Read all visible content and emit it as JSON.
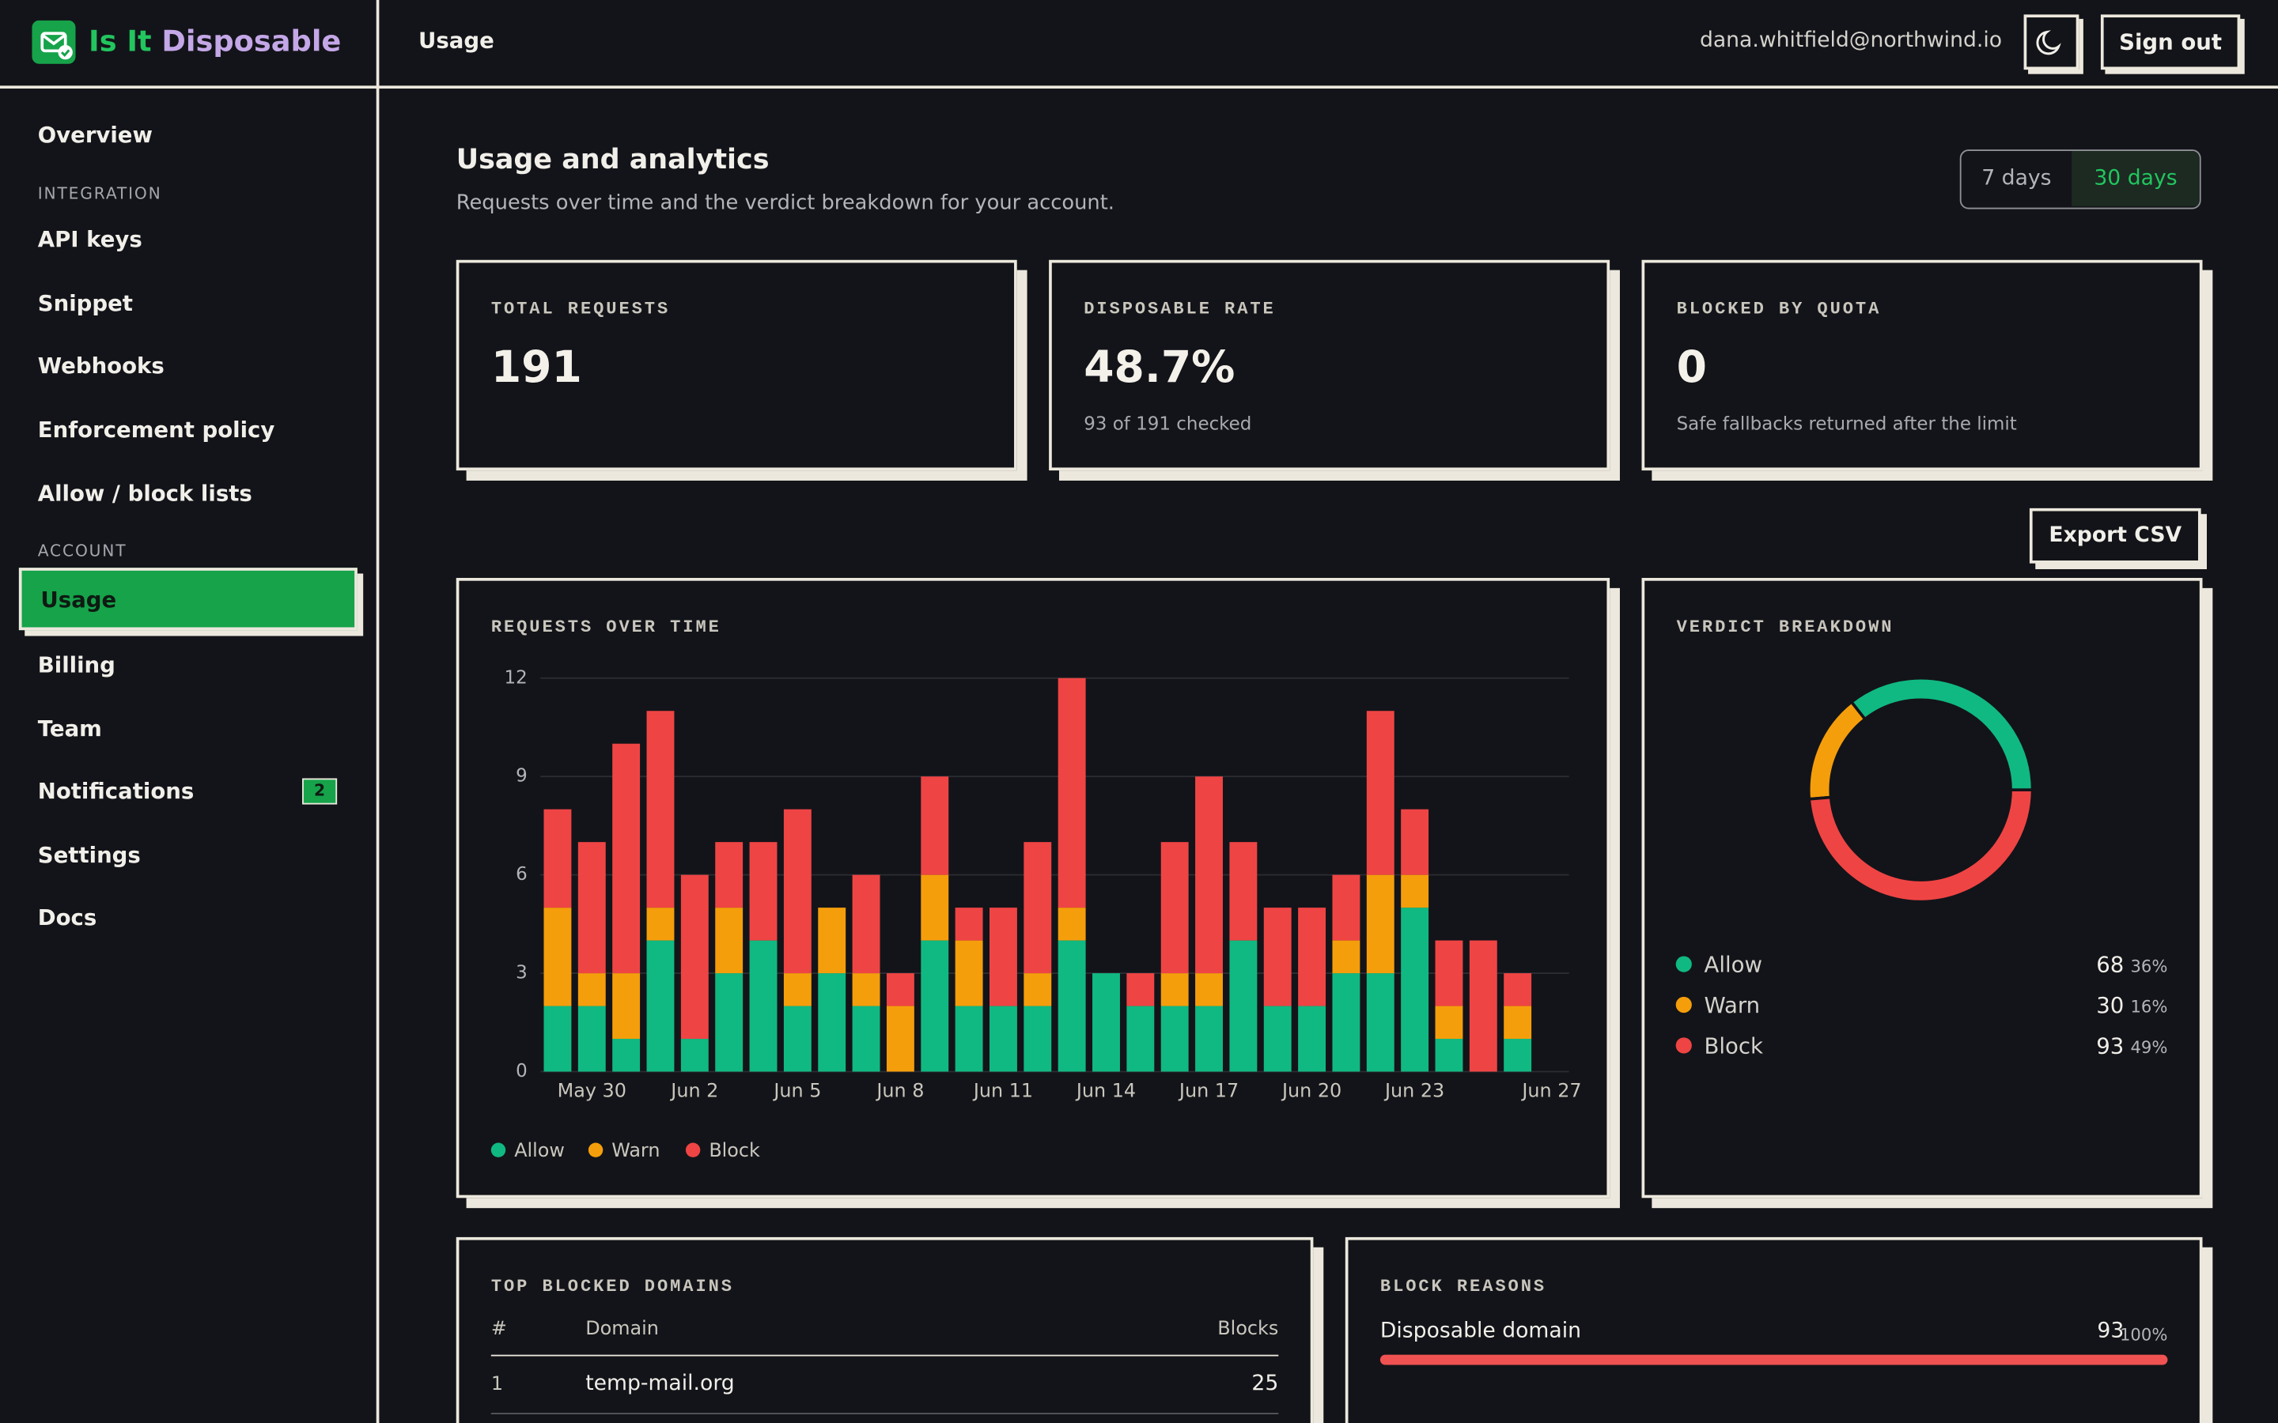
{
  "brand": {
    "first": "Is It",
    "second": "Disposable"
  },
  "topbar": {
    "page": "Usage",
    "email": "dana.whitfield@northwind.io",
    "sign_out": "Sign out"
  },
  "nav": {
    "overview": "Overview",
    "integration": "INTEGRATION",
    "api_keys": "API keys",
    "snippet": "Snippet",
    "webhooks": "Webhooks",
    "enforcement": "Enforcement policy",
    "lists": "Allow / block lists",
    "account": "ACCOUNT",
    "usage": "Usage",
    "billing": "Billing",
    "team": "Team",
    "notifications": "Notifications",
    "notifications_badge": "2",
    "settings": "Settings",
    "docs": "Docs"
  },
  "header": {
    "title": "Usage and analytics",
    "subtitle": "Requests over time and the verdict breakdown for your account.",
    "ranges": [
      "7 days",
      "30 days"
    ]
  },
  "stats": [
    {
      "label": "TOTAL REQUESTS",
      "value": "191"
    },
    {
      "label": "DISPOSABLE RATE",
      "value": "48.7%",
      "note": "93 of 191 checked"
    },
    {
      "label": "BLOCKED BY QUOTA",
      "value": "0",
      "note": "Safe fallbacks returned after the limit"
    }
  ],
  "export": "Export CSV",
  "chart_data": [
    {
      "type": "bar",
      "stacked": true,
      "title": "REQUESTS OVER TIME",
      "categories": [
        null,
        "May 30",
        null,
        null,
        "Jun 2",
        null,
        null,
        "Jun 5",
        null,
        null,
        "Jun 8",
        null,
        null,
        "Jun 11",
        null,
        null,
        "Jun 14",
        null,
        null,
        "Jun 17",
        null,
        null,
        "Jun 20",
        null,
        null,
        "Jun 23",
        null,
        null,
        null,
        "Jun 27"
      ],
      "series": [
        {
          "name": "Allow",
          "color": "#10b981",
          "values": [
            2,
            2,
            1,
            4,
            1,
            3,
            4,
            2,
            3,
            2,
            0,
            4,
            2,
            2,
            2,
            4,
            3,
            2,
            2,
            2,
            4,
            2,
            2,
            3,
            3,
            5,
            1,
            0,
            1,
            0
          ]
        },
        {
          "name": "Warn",
          "color": "#f59e0b",
          "values": [
            3,
            1,
            2,
            1,
            0,
            2,
            0,
            1,
            2,
            1,
            2,
            2,
            2,
            0,
            1,
            1,
            0,
            0,
            1,
            1,
            0,
            0,
            0,
            1,
            3,
            1,
            1,
            0,
            1,
            0
          ]
        },
        {
          "name": "Block",
          "color": "#ef4444",
          "values": [
            3,
            4,
            7,
            6,
            5,
            2,
            3,
            5,
            0,
            3,
            1,
            3,
            1,
            3,
            4,
            7,
            0,
            1,
            4,
            6,
            3,
            3,
            3,
            2,
            5,
            2,
            2,
            4,
            1,
            0
          ]
        }
      ],
      "ylim": [
        0,
        12
      ],
      "yticks": [
        0,
        3,
        6,
        9,
        12
      ],
      "grid": true
    },
    {
      "type": "pie",
      "donut": true,
      "title": "VERDICT BREAKDOWN",
      "categories": [
        "Allow",
        "Warn",
        "Block"
      ],
      "values": [
        68,
        30,
        93
      ],
      "value_labels": [
        "36%",
        "16%",
        "49%"
      ],
      "colors": [
        "#10b981",
        "#f59e0b",
        "#ef4444"
      ]
    }
  ],
  "top_blocked": {
    "title": "TOP BLOCKED DOMAINS",
    "columns": [
      "#",
      "Domain",
      "Blocks"
    ],
    "rows": [
      [
        "1",
        "temp-mail.org",
        "25"
      ]
    ]
  },
  "block_reasons": {
    "title": "BLOCK REASONS",
    "items": [
      {
        "name": "Disposable domain",
        "count": "93",
        "share": "100%"
      }
    ]
  }
}
